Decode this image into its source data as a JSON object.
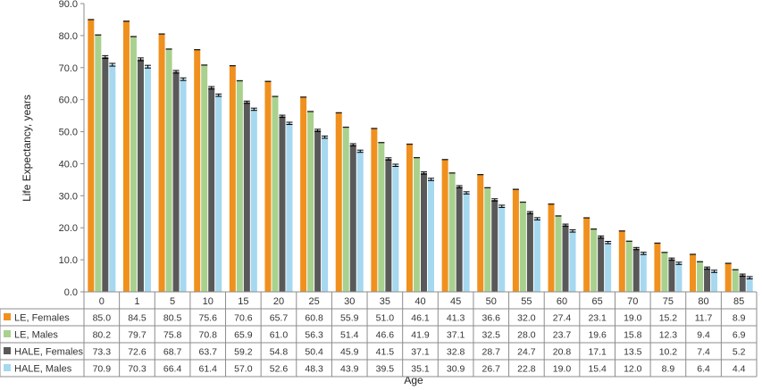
{
  "chart_data": {
    "type": "bar",
    "title": "",
    "xlabel": "Age",
    "ylabel": "Life Expectancy, years",
    "ylim": [
      0,
      90
    ],
    "yticks": [
      "0.0",
      "10.0",
      "20.0",
      "30.0",
      "40.0",
      "50.0",
      "60.0",
      "70.0",
      "80.0",
      "90.0"
    ],
    "categories": [
      "0",
      "1",
      "5",
      "10",
      "15",
      "20",
      "25",
      "30",
      "35",
      "40",
      "45",
      "50",
      "55",
      "60",
      "65",
      "70",
      "75",
      "80",
      "85"
    ],
    "grid": false,
    "legend": "left, data table",
    "error_bars_on": [
      "HALE, Females",
      "HALE, Males"
    ],
    "series": [
      {
        "name": "LE, Females",
        "color": "#f0901e",
        "values": [
          "85.0",
          "84.5",
          "80.5",
          "75.6",
          "70.6",
          "65.7",
          "60.8",
          "55.9",
          "51.0",
          "46.1",
          "41.3",
          "36.6",
          "32.0",
          "27.4",
          "23.1",
          "19.0",
          "15.2",
          "11.7",
          "8.9"
        ]
      },
      {
        "name": "LE, Males",
        "color": "#a9d18e",
        "values": [
          "80.2",
          "79.7",
          "75.8",
          "70.8",
          "65.9",
          "61.0",
          "56.3",
          "51.4",
          "46.6",
          "41.9",
          "37.1",
          "32.5",
          "28.0",
          "23.7",
          "19.6",
          "15.8",
          "12.3",
          "9.4",
          "6.9"
        ]
      },
      {
        "name": "HALE, Females",
        "color": "#595959",
        "values": [
          "73.3",
          "72.6",
          "68.7",
          "63.7",
          "59.2",
          "54.8",
          "50.4",
          "45.9",
          "41.5",
          "37.1",
          "32.8",
          "28.7",
          "24.7",
          "20.8",
          "17.1",
          "13.5",
          "10.2",
          "7.4",
          "5.2"
        ]
      },
      {
        "name": "HALE, Males",
        "color": "#a6d8f0",
        "values": [
          "70.9",
          "70.3",
          "66.4",
          "61.4",
          "57.0",
          "52.6",
          "48.3",
          "43.9",
          "39.5",
          "35.1",
          "30.9",
          "26.7",
          "22.8",
          "19.0",
          "15.4",
          "12.0",
          "8.9",
          "6.4",
          "4.4"
        ]
      }
    ]
  }
}
